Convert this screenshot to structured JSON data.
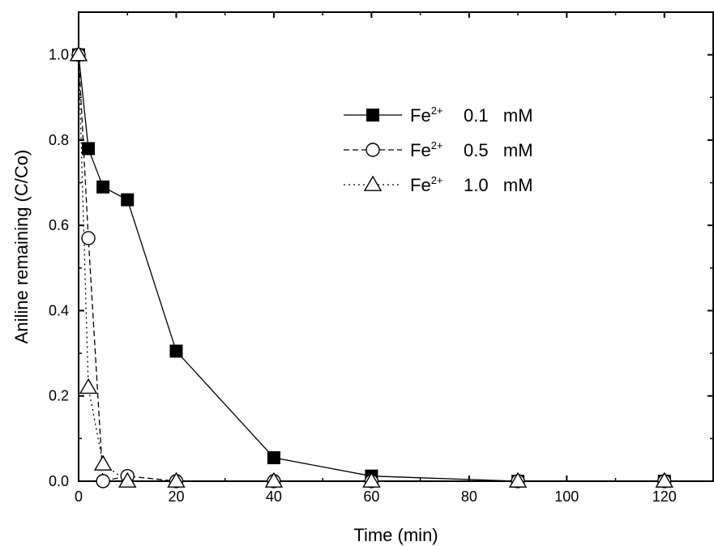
{
  "chart_data": {
    "type": "line",
    "title": "",
    "xlabel": "Time (min)",
    "ylabel": "Aniline remaining (C/Co)",
    "xlim": [
      0,
      130
    ],
    "ylim": [
      0,
      1.1
    ],
    "x_ticks": [
      "0",
      "20",
      "40",
      "60",
      "80",
      "100",
      "120"
    ],
    "y_ticks": [
      "0.0",
      "0.2",
      "0.4",
      "0.6",
      "0.8",
      "1.0"
    ],
    "grid": false,
    "legend_position": "top-right",
    "series": [
      {
        "name_base": "Fe",
        "name_sup": "2+",
        "name_rest": "0.1   mM",
        "marker": "filled-square",
        "line_style": "solid",
        "x": [
          0,
          2,
          5,
          10,
          20,
          40,
          60,
          90,
          120
        ],
        "y": [
          1.0,
          0.78,
          0.69,
          0.66,
          0.305,
          0.055,
          0.012,
          0.0,
          0.0
        ]
      },
      {
        "name_base": "Fe",
        "name_sup": "2+",
        "name_rest": "0.5   mM",
        "marker": "open-circle",
        "line_style": "dashed",
        "x": [
          0,
          2,
          5,
          10,
          20,
          40,
          60,
          90,
          120
        ],
        "y": [
          1.0,
          0.57,
          0.0,
          0.012,
          0.0,
          0.0,
          0.0,
          0.0,
          0.0
        ]
      },
      {
        "name_base": "Fe",
        "name_sup": "2+",
        "name_rest": "1.0   mM",
        "marker": "open-triangle",
        "line_style": "dotted",
        "x": [
          0,
          2,
          5,
          10,
          20,
          40,
          60,
          90,
          120
        ],
        "y": [
          1.0,
          0.22,
          0.04,
          0.0,
          0.0,
          0.0,
          0.0,
          0.0,
          0.0
        ]
      }
    ]
  }
}
